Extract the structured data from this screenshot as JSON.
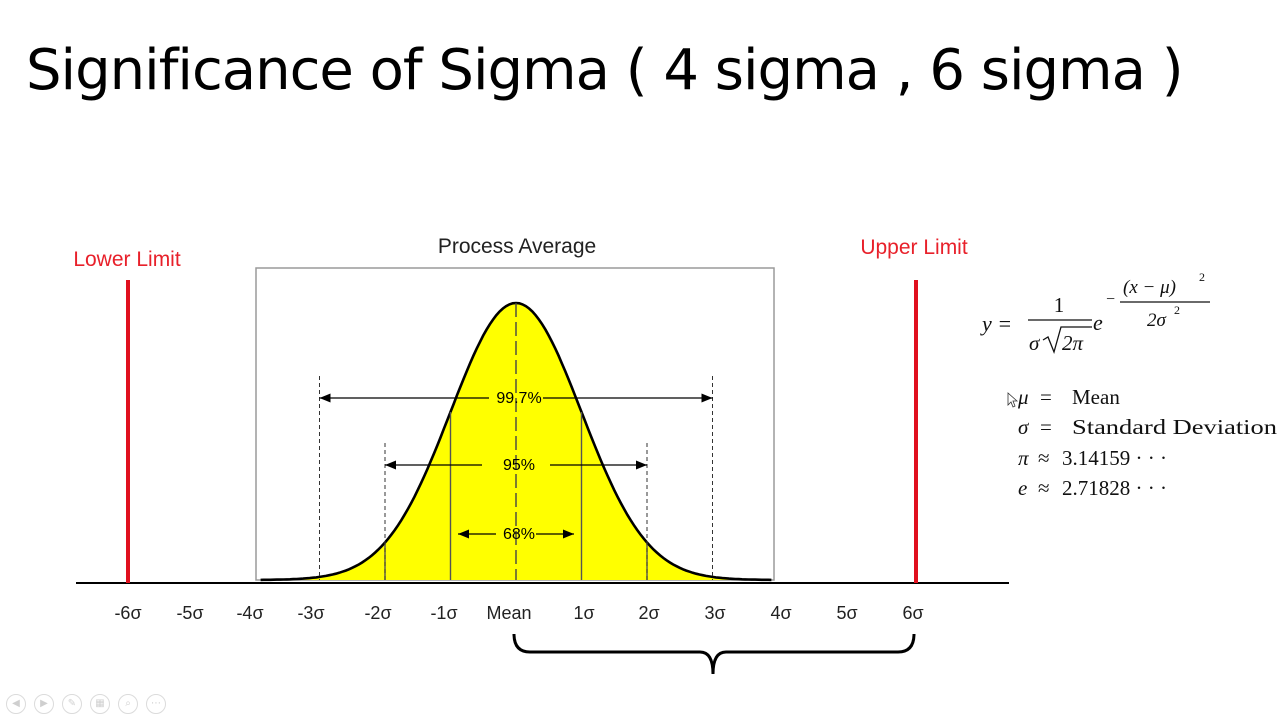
{
  "slide": {
    "title": "Significance of Sigma ( 4 sigma , 6 sigma )"
  },
  "diagram": {
    "lower_limit_label": "Lower Limit",
    "upper_limit_label": "Upper Limit",
    "process_average_label": "Process Average",
    "axis_ticks": [
      "-6σ",
      "-5σ",
      "-4σ",
      "-3σ",
      "-2σ",
      "-1σ",
      "Mean",
      "1σ",
      "2σ",
      "3σ",
      "4σ",
      "5σ",
      "6σ"
    ],
    "intervals": [
      {
        "label": "99.7%",
        "from_sigma": -3,
        "to_sigma": 3
      },
      {
        "label": "95%",
        "from_sigma": -2,
        "to_sigma": 2
      },
      {
        "label": "68%",
        "from_sigma": -1,
        "to_sigma": 1
      }
    ],
    "colors": {
      "curve_fill": "#ffff00",
      "limit_line": "#e0101e",
      "limit_label": "#e8202a"
    }
  },
  "formula": {
    "lhs": "y =",
    "numerator": "1",
    "denominator_sigma": "σ",
    "denominator_sqrt": "2π",
    "base": "e",
    "exp_sign": "−",
    "exp_numerator": "(x − μ)",
    "exp_numerator_power": "2",
    "exp_denominator": "2σ",
    "exp_denominator_power": "2"
  },
  "legend": [
    {
      "symbol": "μ",
      "relation": "=",
      "meaning": "Mean"
    },
    {
      "symbol": "σ",
      "relation": "=",
      "meaning": "Standard Deviation"
    },
    {
      "symbol": "π",
      "relation": "≈",
      "meaning": "3.14159 · · ·"
    },
    {
      "symbol": "e",
      "relation": "≈",
      "meaning": "2.71828 · · ·"
    }
  ],
  "controls": [
    "prev-icon",
    "next-icon",
    "pen-icon",
    "slides-icon",
    "zoom-icon",
    "more-icon"
  ]
}
